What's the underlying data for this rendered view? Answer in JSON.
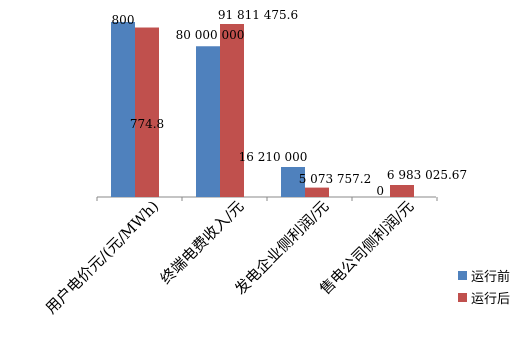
{
  "chart_data": {
    "type": "bar",
    "categories": [
      "用户电价元/(元/MWh)",
      "终端电费收入/元",
      "发电企业侧利润/元",
      "售电公司侧利润/元"
    ],
    "series": [
      {
        "name": "运行前",
        "color": "#4f81bd",
        "values": [
          800,
          80000000,
          16210000,
          0
        ],
        "labels": [
          "800",
          "80 000 000",
          "16 210 000",
          "0"
        ]
      },
      {
        "name": "运行后",
        "color": "#c0504d",
        "values": [
          774.8,
          91811475.6,
          5073757.2,
          6983025.67
        ],
        "labels": [
          "774.8",
          "91 811 475.6",
          "5 073 757.2",
          "6 983 025.67"
        ]
      }
    ],
    "title": "",
    "xlabel": "",
    "ylabel": "",
    "grid": false,
    "legend_position": "right",
    "note": "each category is drawn on its own scale"
  }
}
